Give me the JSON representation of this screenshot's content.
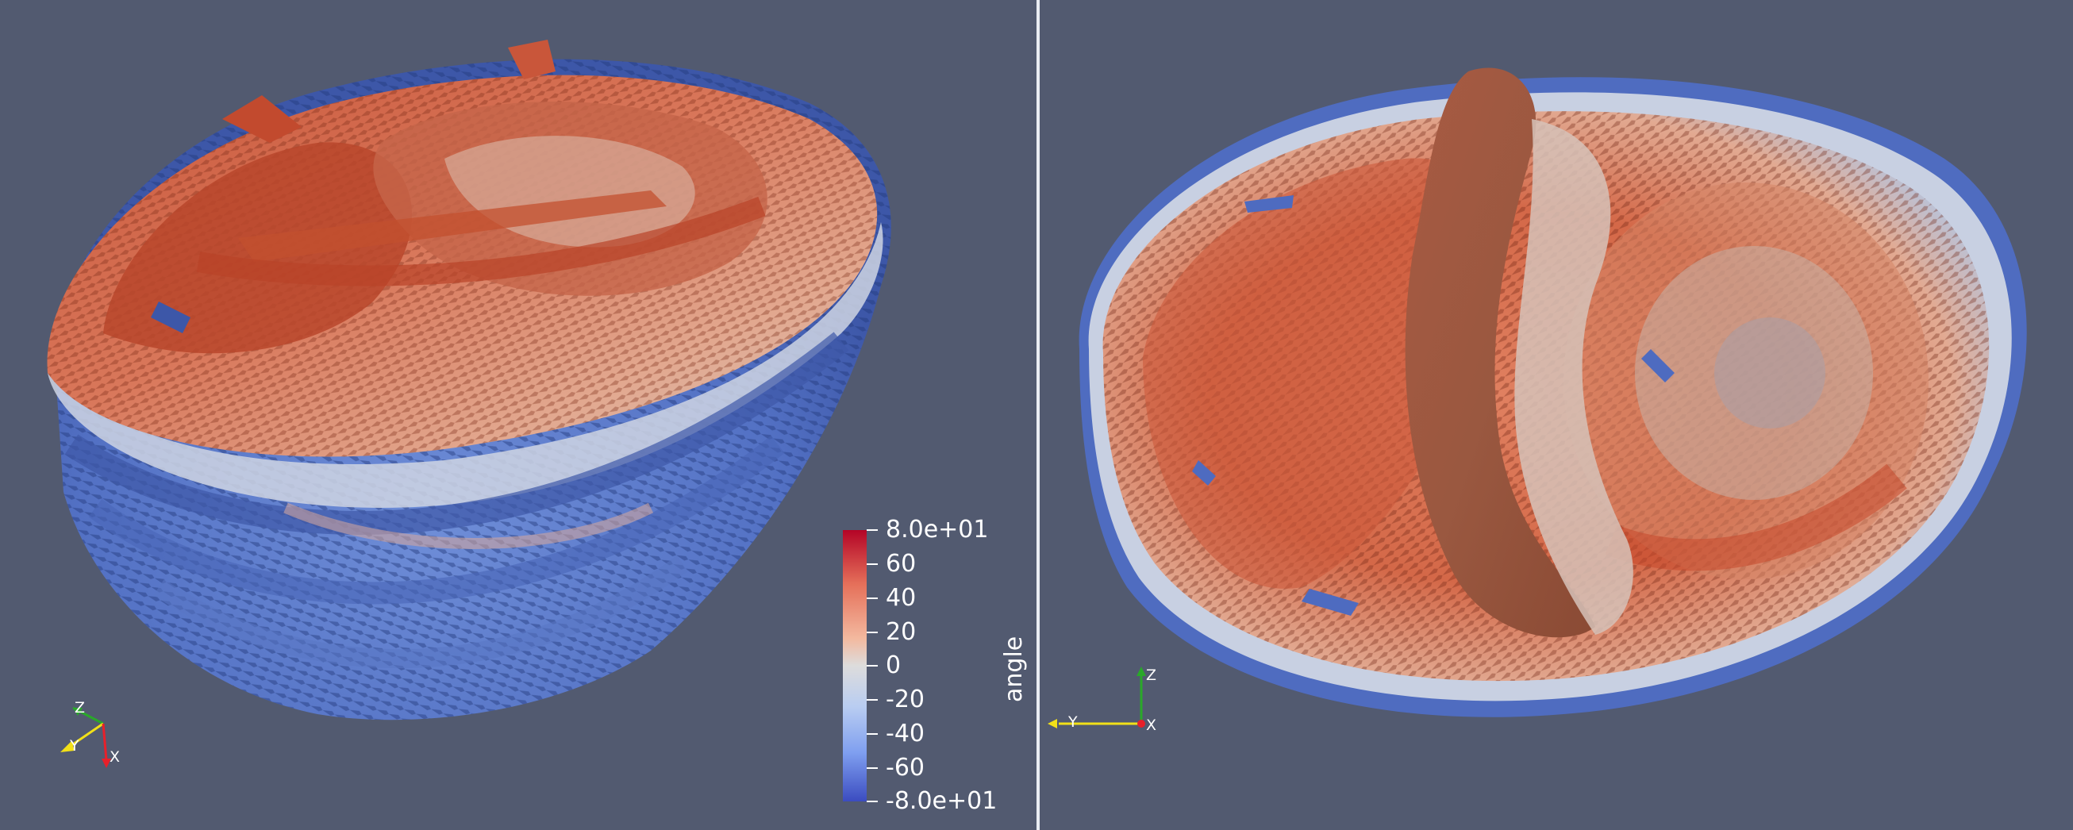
{
  "colorbar": {
    "title": "angle",
    "ticks": [
      "8.0e+01",
      "60",
      "40",
      "20",
      "0",
      "-20",
      "-40",
      "-60",
      "-8.0e+01"
    ],
    "range": [
      -80,
      80
    ],
    "colormap": [
      "#3b4cc0",
      "#7b9ff9",
      "#c0d4f5",
      "#dddcdc",
      "#f2cbb7",
      "#ee8468",
      "#b40426"
    ]
  },
  "left_view": {
    "orientation_axes": {
      "z": "Z",
      "y": "Y",
      "x": "X"
    }
  },
  "right_view": {
    "orientation_axes": {
      "z": "Z",
      "y": "Y",
      "x": "X"
    }
  },
  "colors": {
    "background": "#525a70",
    "divider": "#e9ecf2",
    "axis_x": "#e8202a",
    "axis_y": "#f2e018",
    "axis_z": "#2aa82a"
  }
}
